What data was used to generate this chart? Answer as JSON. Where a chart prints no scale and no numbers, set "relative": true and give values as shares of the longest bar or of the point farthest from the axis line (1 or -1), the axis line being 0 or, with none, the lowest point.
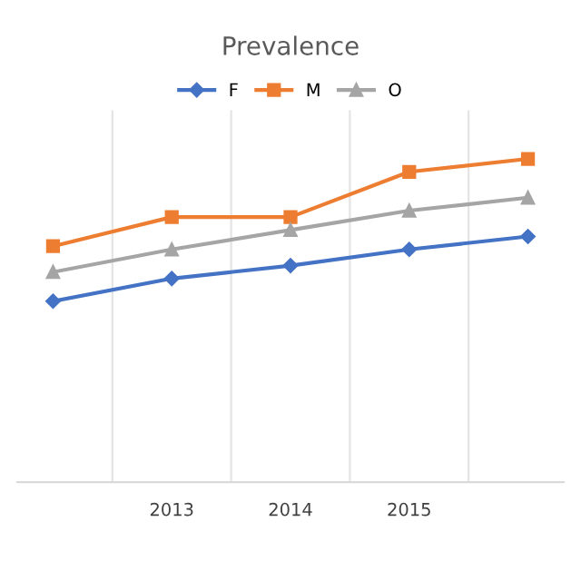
{
  "chart_data": {
    "type": "line",
    "title": "Prevalence",
    "relative": true,
    "categories": [
      null,
      "2013",
      "2014",
      "2015",
      null
    ],
    "series": [
      {
        "name": "F",
        "color": "#4472c4",
        "marker": "diamond",
        "values": [
          0.56,
          0.63,
          0.67,
          0.72,
          0.76
        ]
      },
      {
        "name": "M",
        "color": "#ed7d31",
        "marker": "square",
        "values": [
          0.73,
          0.82,
          0.82,
          0.96,
          1
        ]
      },
      {
        "name": "O",
        "color": "#a5a5a5",
        "marker": "triangle",
        "values": [
          0.65,
          0.72,
          0.78,
          0.84,
          0.88
        ]
      }
    ],
    "grid": "x",
    "legend": "top",
    "line_style": "solid"
  }
}
